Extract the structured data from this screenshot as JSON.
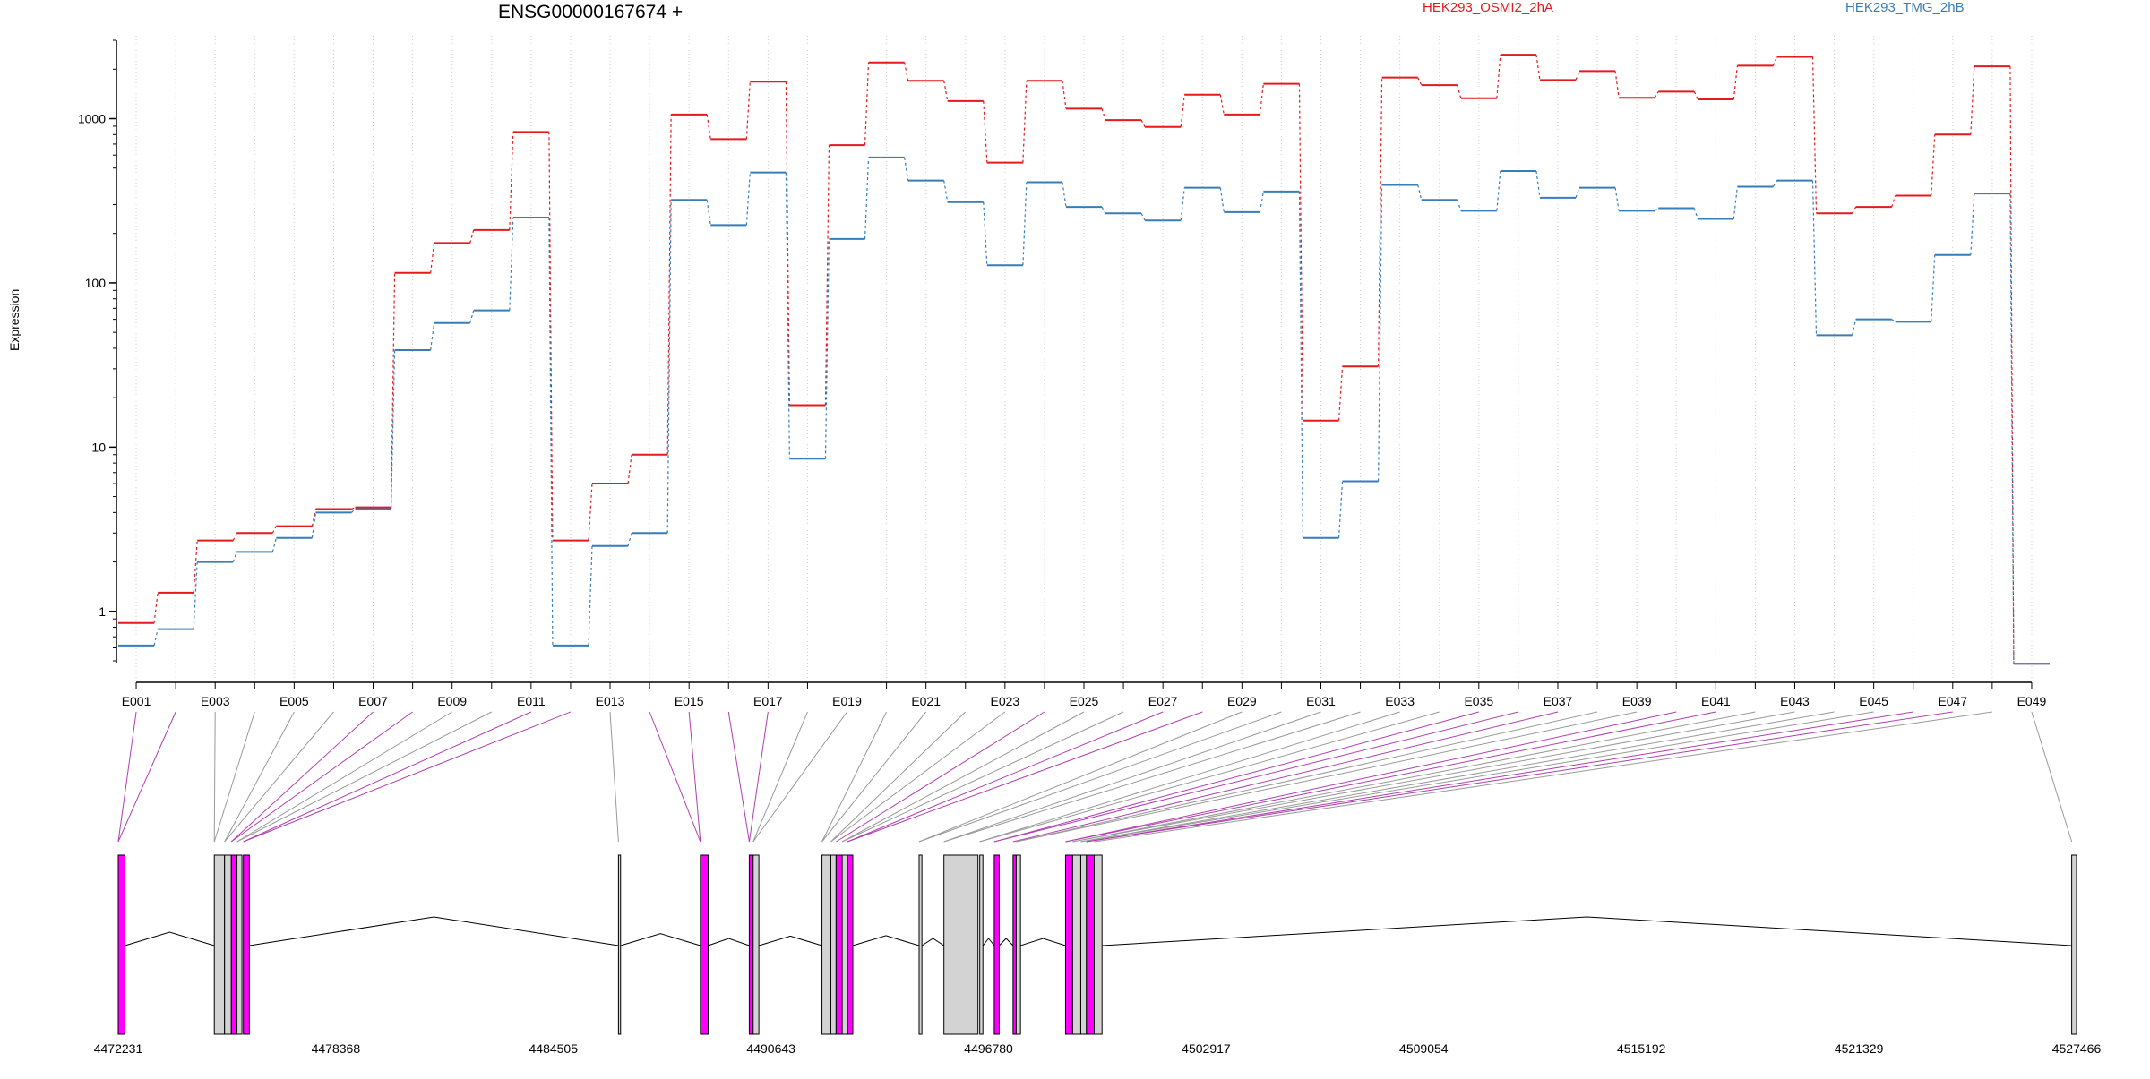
{
  "chart_data": {
    "type": "line",
    "title": "ENSG00000167674 +",
    "ylabel": "Expression",
    "yscale": "log",
    "ylim": [
      0.5,
      3000
    ],
    "yticks": [
      1,
      10,
      100,
      1000
    ],
    "ytick_labels": [
      "1",
      "10",
      "100",
      "1000"
    ],
    "legend_placement": "top",
    "grid": "vertical dotted lines at each exon",
    "categories": [
      "E001",
      "E002",
      "E003",
      "E004",
      "E005",
      "E006",
      "E007",
      "E008",
      "E009",
      "E010",
      "E011",
      "E012",
      "E013",
      "E014",
      "E015",
      "E016",
      "E017",
      "E018",
      "E019",
      "E020",
      "E021",
      "E022",
      "E023",
      "E024",
      "E025",
      "E026",
      "E027",
      "E028",
      "E029",
      "E030",
      "E031",
      "E032",
      "E033",
      "E034",
      "E035",
      "E036",
      "E037",
      "E038",
      "E039",
      "E040",
      "E041",
      "E042",
      "E043",
      "E044",
      "E045",
      "E046",
      "E047",
      "E048",
      "E049"
    ],
    "xtick_labels": [
      "E001",
      "E003",
      "E005",
      "E007",
      "E009",
      "E011",
      "E013",
      "E015",
      "E017",
      "E019",
      "E021",
      "E023",
      "E025",
      "E027",
      "E029",
      "E031",
      "E033",
      "E035",
      "E037",
      "E039",
      "E041",
      "E043",
      "E045",
      "E047",
      "E049"
    ],
    "series": [
      {
        "name": "HEK293_OSMI2_2hA",
        "color": "#e41a1c",
        "values": [
          0.85,
          1.3,
          2.7,
          3,
          3.3,
          4.2,
          4.3,
          115,
          175,
          210,
          830,
          2.7,
          6,
          9,
          1060,
          750,
          1680,
          18,
          690,
          2200,
          1700,
          1280,
          540,
          1700,
          1150,
          980,
          890,
          1400,
          1060,
          1630,
          14.5,
          31,
          1780,
          1600,
          1330,
          2450,
          1720,
          1950,
          1340,
          1460,
          1310,
          2100,
          2380,
          265,
          290,
          340,
          800,
          2080,
          0.48
        ]
      },
      {
        "name": "HEK293_TMG_2hB",
        "color": "#377eb8",
        "values": [
          0.62,
          0.78,
          2,
          2.3,
          2.8,
          4,
          4.2,
          39,
          57,
          68,
          250,
          0.62,
          2.5,
          3,
          320,
          225,
          470,
          8.5,
          185,
          580,
          420,
          310,
          128,
          410,
          290,
          265,
          240,
          380,
          270,
          360,
          2.8,
          6.2,
          395,
          320,
          275,
          480,
          330,
          380,
          275,
          285,
          245,
          385,
          420,
          48,
          60,
          58,
          148,
          350,
          0.48
        ]
      }
    ],
    "gene_model": {
      "xlabel_ticks": [
        "4472231",
        "4478368",
        "4484505",
        "4490643",
        "4496780",
        "4502917",
        "4509054",
        "4515192",
        "4521329",
        "4527466"
      ],
      "tick_values": [
        4472231,
        4478368,
        4484505,
        4490643,
        4496780,
        4502917,
        4509054,
        4515192,
        4521329,
        4527466
      ],
      "range": [
        4472231,
        4527466
      ],
      "exon_colors": {
        "gray": "#d3d3d3",
        "magenta": "#ff00ff"
      },
      "features": [
        {
          "start": 4472231,
          "end": 4472420,
          "color": "magenta"
        },
        {
          "start": 4474940,
          "end": 4475230,
          "color": "gray"
        },
        {
          "start": 4475230,
          "end": 4475420,
          "color": "gray"
        },
        {
          "start": 4475420,
          "end": 4475580,
          "color": "magenta"
        },
        {
          "start": 4475580,
          "end": 4475720,
          "color": "gray"
        },
        {
          "start": 4475760,
          "end": 4475930,
          "color": "magenta"
        },
        {
          "start": 4486340,
          "end": 4486400,
          "color": "gray"
        },
        {
          "start": 4488650,
          "end": 4488870,
          "color": "magenta"
        },
        {
          "start": 4490030,
          "end": 4490140,
          "color": "magenta"
        },
        {
          "start": 4490140,
          "end": 4490300,
          "color": "gray"
        },
        {
          "start": 4492080,
          "end": 4492330,
          "color": "gray"
        },
        {
          "start": 4492330,
          "end": 4492480,
          "color": "gray"
        },
        {
          "start": 4492480,
          "end": 4492650,
          "color": "magenta"
        },
        {
          "start": 4492650,
          "end": 4492800,
          "color": "gray"
        },
        {
          "start": 4492800,
          "end": 4492950,
          "color": "magenta"
        },
        {
          "start": 4494820,
          "end": 4494900,
          "color": "gray"
        },
        {
          "start": 4495520,
          "end": 4496480,
          "color": "gray"
        },
        {
          "start": 4496530,
          "end": 4496620,
          "color": "gray"
        },
        {
          "start": 4496940,
          "end": 4497080,
          "color": "magenta"
        },
        {
          "start": 4497470,
          "end": 4497560,
          "color": "magenta"
        },
        {
          "start": 4497560,
          "end": 4497680,
          "color": "gray"
        },
        {
          "start": 4498950,
          "end": 4499150,
          "color": "magenta"
        },
        {
          "start": 4499150,
          "end": 4499380,
          "color": "gray"
        },
        {
          "start": 4499380,
          "end": 4499540,
          "color": "gray"
        },
        {
          "start": 4499540,
          "end": 4499760,
          "color": "magenta"
        },
        {
          "start": 4499760,
          "end": 4499980,
          "color": "gray"
        },
        {
          "start": 4527330,
          "end": 4527466,
          "color": "gray"
        }
      ]
    }
  }
}
